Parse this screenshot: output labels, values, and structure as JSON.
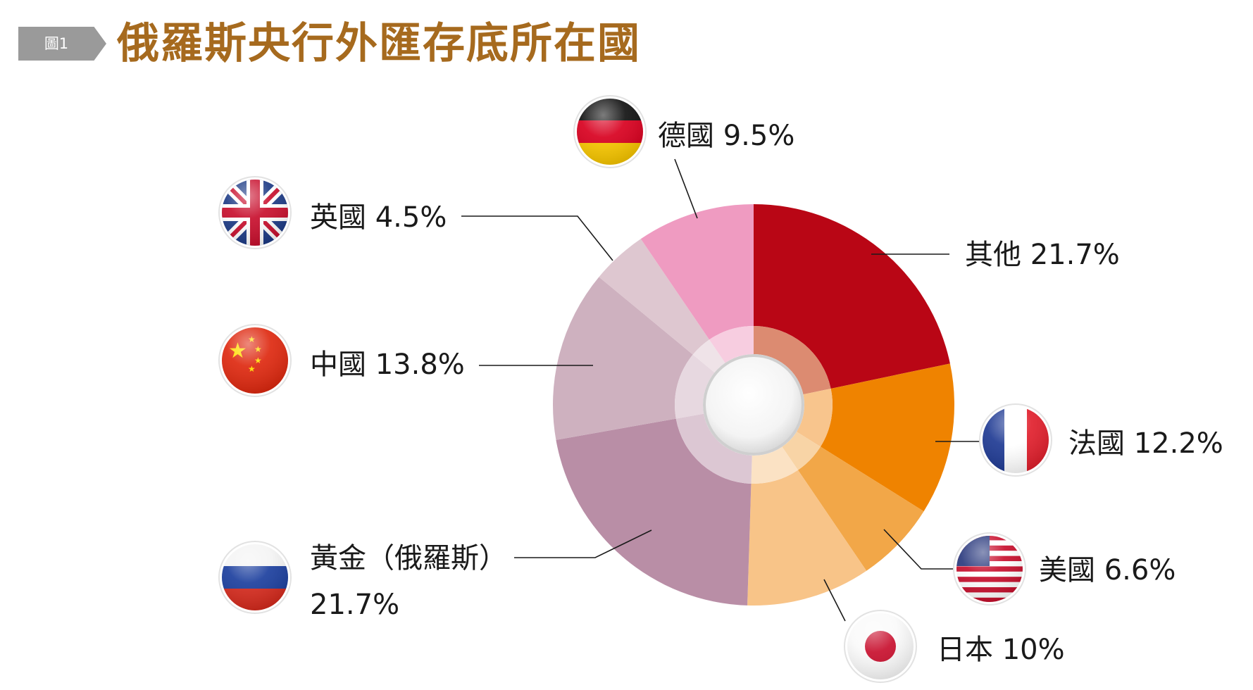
{
  "header": {
    "figure_tag": "圖1",
    "title": "俄羅斯央行外匯存底所在國"
  },
  "chart_data": {
    "type": "pie",
    "style": "donut",
    "title": "俄羅斯央行外匯存底所在國",
    "start": "12 o'clock, clockwise",
    "slices": [
      {
        "label": "其他",
        "value": 21.7,
        "value_text": "21.7%",
        "color": "#b90615",
        "inner_color": "#dc8b71",
        "flag_icon": ""
      },
      {
        "label": "法國",
        "value": 12.2,
        "value_text": "12.2%",
        "color": "#ef8300",
        "inner_color": "#f8c58d",
        "flag_icon": "france-flag-icon"
      },
      {
        "label": "美國",
        "value": 6.6,
        "value_text": "6.6%",
        "color": "#f2a748",
        "inner_color": "#f8d4a6",
        "flag_icon": "usa-flag-icon"
      },
      {
        "label": "日本",
        "value": 10,
        "value_text": "10%",
        "color": "#f8c488",
        "inner_color": "#fbe2c4",
        "flag_icon": "japan-flag-icon"
      },
      {
        "label": "黃金（俄羅斯）",
        "value": 21.7,
        "value_text": "21.7%",
        "color": "#b98ea6",
        "inner_color": "#dcc7d3",
        "flag_icon": "russia-flag-icon"
      },
      {
        "label": "中國",
        "value": 13.8,
        "value_text": "13.8%",
        "color": "#ceb1bf",
        "inner_color": "#e7d8e0",
        "flag_icon": "china-flag-icon"
      },
      {
        "label": "英國",
        "value": 4.5,
        "value_text": "4.5%",
        "color": "#dec7d0",
        "inner_color": "#efe3e8",
        "flag_icon": "uk-flag-icon"
      },
      {
        "label": "德國",
        "value": 9.5,
        "value_text": "9.5%",
        "color": "#ef9bc1",
        "inner_color": "#f7cde0",
        "flag_icon": "germany-flag-icon"
      }
    ]
  }
}
